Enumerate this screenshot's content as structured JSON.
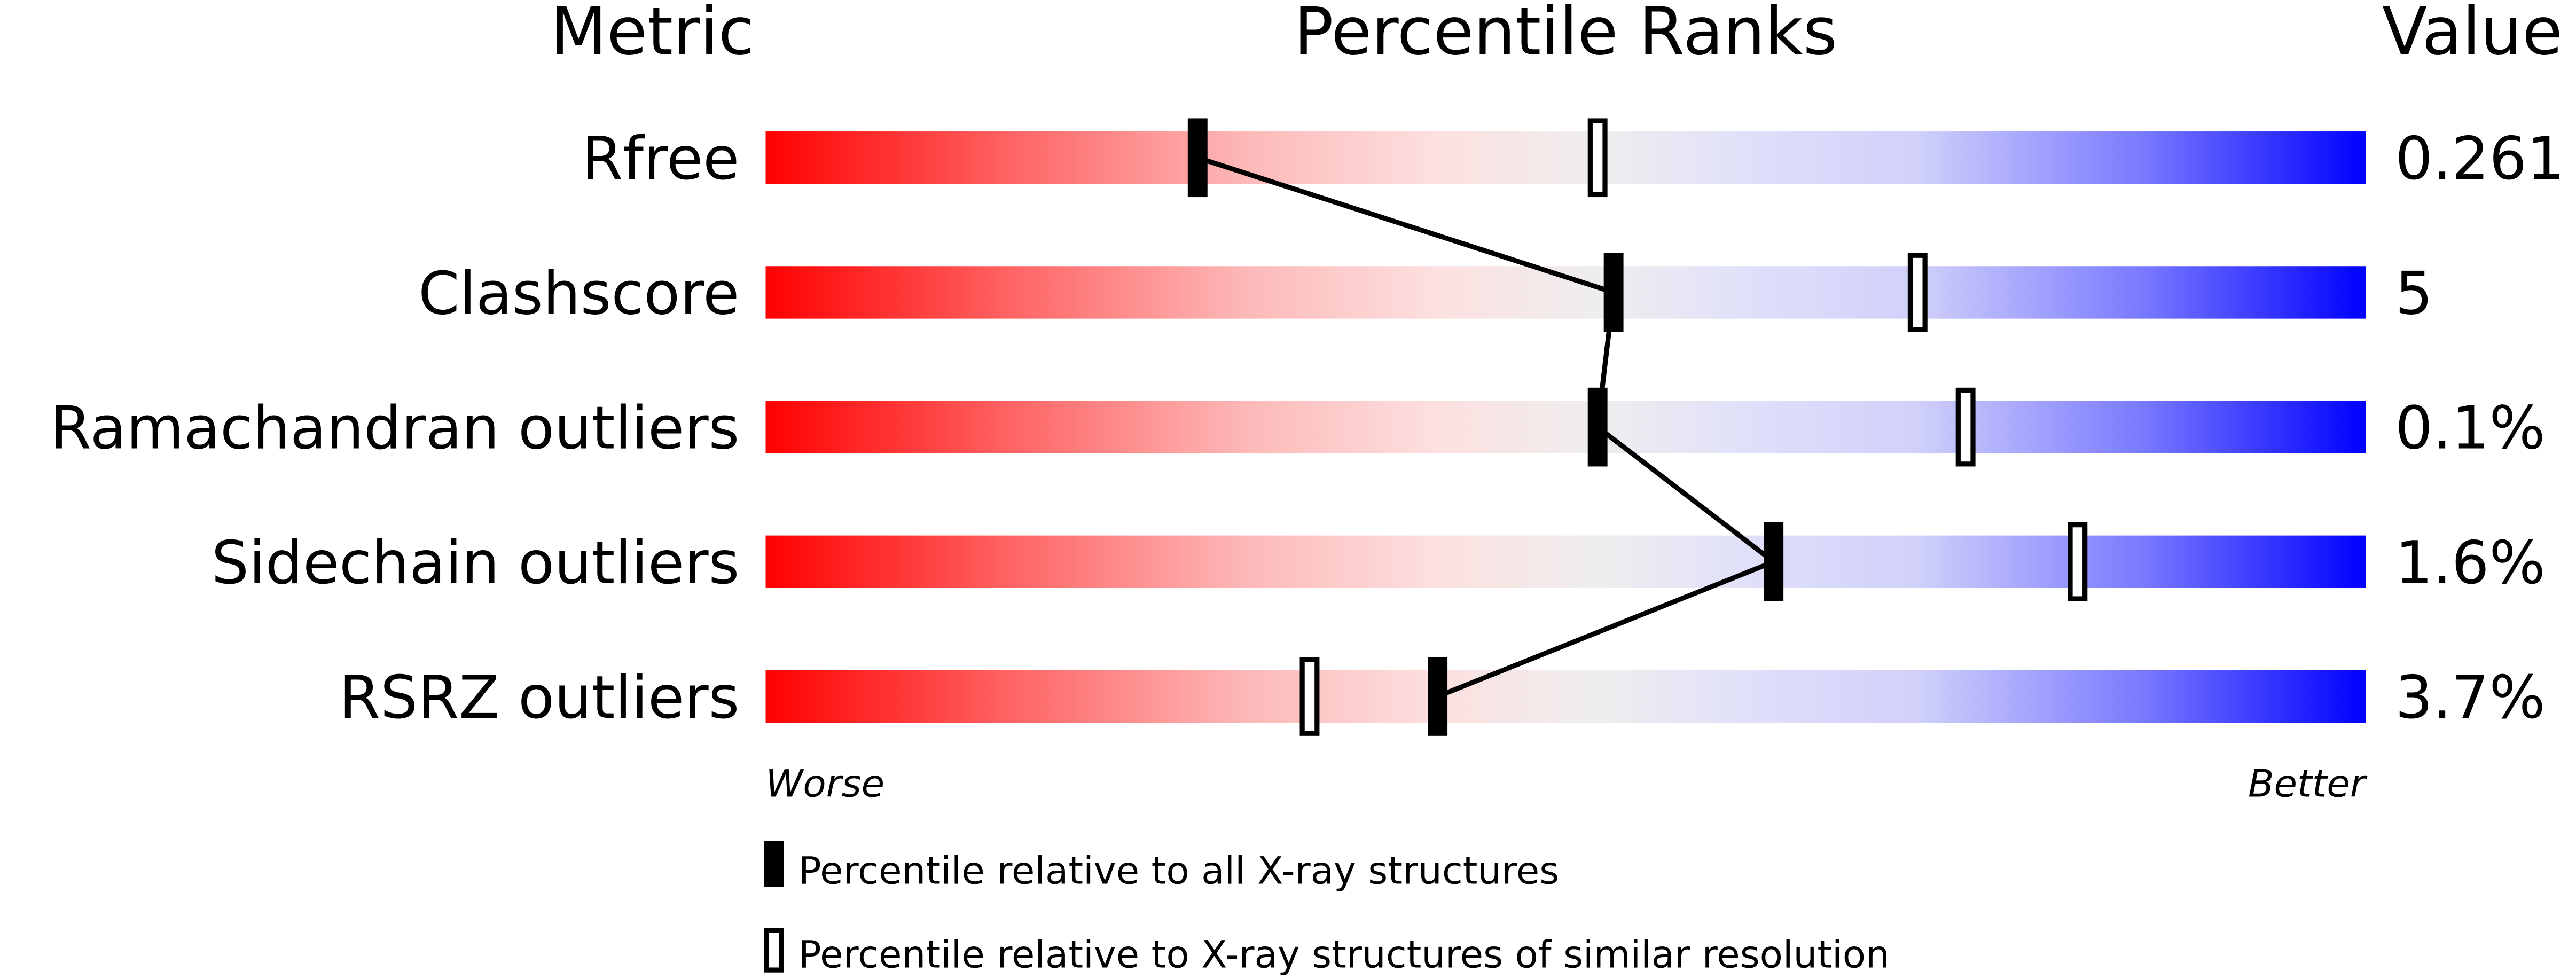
{
  "chart_data": {
    "type": "table",
    "headers": {
      "metric": "Metric",
      "ranks": "Percentile Ranks",
      "value": "Value"
    },
    "rows": [
      {
        "metric": "Rfree",
        "value": "0.261",
        "percentile_all": 27,
        "percentile_similar": 52
      },
      {
        "metric": "Clashscore",
        "value": "5",
        "percentile_all": 53,
        "percentile_similar": 72
      },
      {
        "metric": "Ramachandran outliers",
        "value": "0.1%",
        "percentile_all": 52,
        "percentile_similar": 75
      },
      {
        "metric": "Sidechain outliers",
        "value": "1.6%",
        "percentile_all": 63,
        "percentile_similar": 82
      },
      {
        "metric": "RSRZ outliers",
        "value": "3.7%",
        "percentile_all": 42,
        "percentile_similar": 34
      }
    ],
    "axis": {
      "left": "Worse",
      "right": "Better",
      "range": [
        0,
        100
      ]
    },
    "legend": {
      "all": "Percentile relative to all X-ray structures",
      "similar": "Percentile relative to X-ray structures of similar resolution"
    },
    "colors": {
      "worse": "#ff0000",
      "middle": "#eeeeee",
      "better": "#0000ff",
      "marker": "#000000"
    }
  }
}
